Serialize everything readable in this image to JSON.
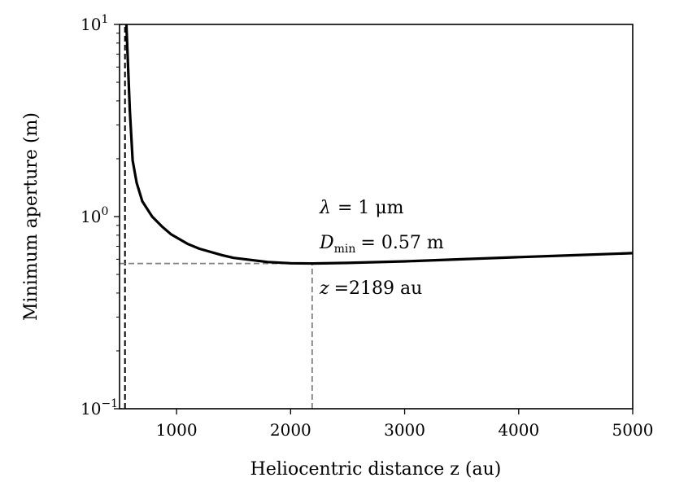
{
  "chart_data": {
    "type": "line",
    "title": "",
    "xlabel": "Heliocentric distance z (au)",
    "ylabel": "Minimum aperture (m)",
    "xlim": [
      500,
      5000
    ],
    "ylim": [
      0.1,
      10
    ],
    "yscale": "log",
    "xticks": [
      1000,
      2000,
      3000,
      4000,
      5000
    ],
    "xtick_labels": [
      "1000",
      "2000",
      "3000",
      "4000",
      "5000"
    ],
    "yticks": [
      0.1,
      1,
      10
    ],
    "ytick_labels": [
      {
        "base": "10",
        "exp": "−1"
      },
      {
        "base": "10",
        "exp": "0"
      },
      {
        "base": "10",
        "exp": "1"
      }
    ],
    "series": [
      {
        "name": "Minimum aperture",
        "color": "#000000",
        "x": [
          560,
          575,
          590,
          615,
          650,
          700,
          786,
          870,
          950,
          1100,
          1200,
          1400,
          1500,
          1800,
          2000,
          2189,
          2500,
          3000,
          3500,
          4000,
          4500,
          5000
        ],
        "y": [
          10,
          6.0,
          3.6,
          1.96,
          1.5,
          1.2,
          1.0,
          0.89,
          0.81,
          0.72,
          0.68,
          0.63,
          0.61,
          0.58,
          0.572,
          0.57,
          0.574,
          0.585,
          0.6,
          0.615,
          0.63,
          0.645
        ]
      }
    ],
    "reference_lines": [
      {
        "type": "vertical",
        "x": 547.8,
        "color": "#000000",
        "style": "dashed"
      },
      {
        "type": "horizontal",
        "y": 0.57,
        "x_to": 2189,
        "color": "#808080",
        "style": "dashed"
      },
      {
        "type": "vertical",
        "x": 2189,
        "y_to": 0.57,
        "color": "#808080",
        "style": "dashed"
      }
    ],
    "annotations": {
      "lambda": {
        "symbol": "λ",
        "text": "= 1 μm"
      },
      "dmin": {
        "symbol": "D",
        "sub": "min",
        "text": "= 0.57 m"
      },
      "z": {
        "symbol": "z",
        "text": "=2189 au"
      }
    },
    "grid": false,
    "legend": "none"
  }
}
